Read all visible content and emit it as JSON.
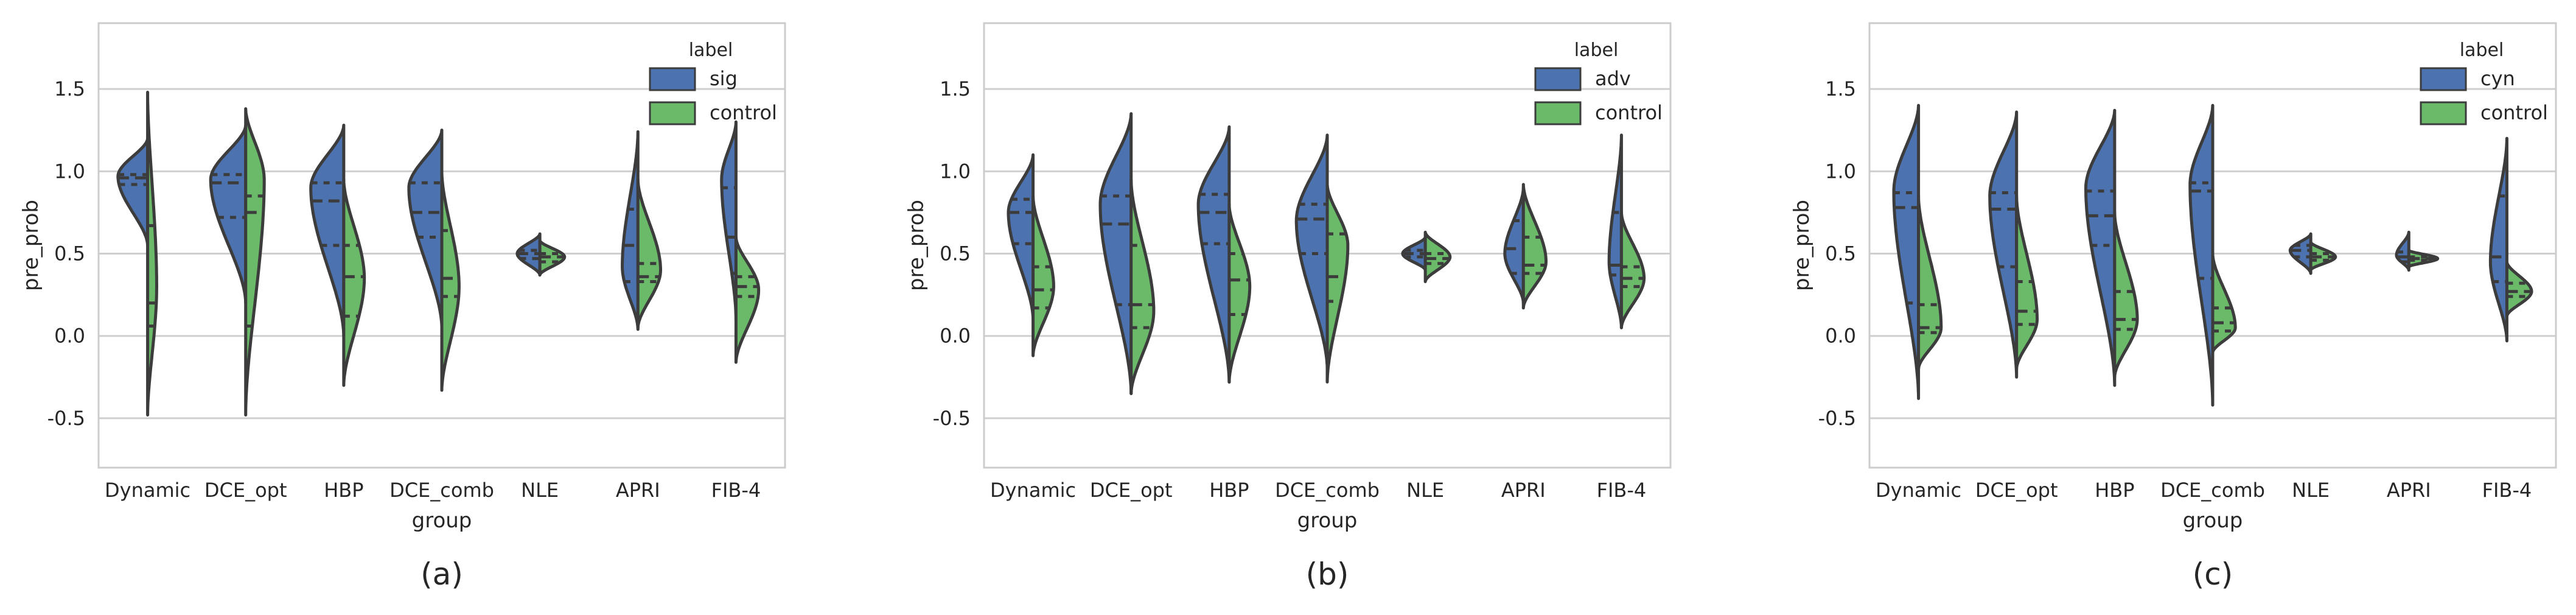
{
  "chart_data": [
    {
      "type": "violin",
      "panel_label": "(a)",
      "title": "",
      "xlabel": "group",
      "ylabel": "pre_prob",
      "ylim": [
        -0.8,
        1.9
      ],
      "yticks": [
        -0.5,
        0.0,
        0.5,
        1.0,
        1.5
      ],
      "ytick_labels": [
        "-0.5",
        "0.0",
        "0.5",
        "1.0",
        "1.5"
      ],
      "grid": "horizontal",
      "categories": [
        "Dynamic",
        "DCE_opt",
        "HBP",
        "DCE_comb",
        "NLE",
        "APRI",
        "FIB-4"
      ],
      "legend": {
        "title": "label",
        "position": "top-right",
        "entries": [
          "sig",
          "control"
        ]
      },
      "series": [
        {
          "name": "sig",
          "color": "#4c72b0",
          "side": "left",
          "violins": [
            {
              "min": 0.55,
              "max": 1.2,
              "mode": 0.97,
              "q1": 0.92,
              "median": 0.96,
              "q3": 0.98,
              "width": 0.72
            },
            {
              "min": 0.2,
              "max": 1.28,
              "mode": 0.95,
              "q1": 0.72,
              "median": 0.93,
              "q3": 0.98,
              "width": 0.85
            },
            {
              "min": 0.0,
              "max": 1.28,
              "mode": 0.9,
              "q1": 0.55,
              "median": 0.82,
              "q3": 0.93,
              "width": 0.8
            },
            {
              "min": 0.05,
              "max": 1.25,
              "mode": 0.9,
              "q1": 0.6,
              "median": 0.75,
              "q3": 0.93,
              "width": 0.8
            },
            {
              "min": 0.37,
              "max": 0.62,
              "mode": 0.5,
              "q1": 0.47,
              "median": 0.5,
              "q3": 0.52,
              "width": 0.55
            },
            {
              "min": 0.04,
              "max": 1.24,
              "mode": 0.42,
              "q1": 0.33,
              "median": 0.55,
              "q3": 0.77,
              "width": 0.38
            },
            {
              "min": 0.1,
              "max": 1.3,
              "mode": 0.95,
              "q1": 0.38,
              "median": 0.6,
              "q3": 0.9,
              "width": 0.35
            }
          ]
        },
        {
          "name": "control",
          "color": "#6aba6a",
          "side": "right",
          "violins": [
            {
              "min": -0.48,
              "max": 1.48,
              "mode": 0.3,
              "q1": 0.06,
              "median": 0.2,
              "q3": 0.67,
              "width": 0.22
            },
            {
              "min": -0.48,
              "max": 1.38,
              "mode": 0.95,
              "q1": 0.06,
              "median": 0.75,
              "q3": 0.85,
              "width": 0.45
            },
            {
              "min": -0.3,
              "max": 0.95,
              "mode": 0.35,
              "q1": 0.12,
              "median": 0.36,
              "q3": 0.55,
              "width": 0.5
            },
            {
              "min": -0.33,
              "max": 1.0,
              "mode": 0.3,
              "q1": 0.24,
              "median": 0.35,
              "q3": 0.64,
              "width": 0.42
            },
            {
              "min": 0.37,
              "max": 0.58,
              "mode": 0.48,
              "q1": 0.45,
              "median": 0.48,
              "q3": 0.5,
              "width": 0.6
            },
            {
              "min": 0.05,
              "max": 0.95,
              "mode": 0.4,
              "q1": 0.33,
              "median": 0.36,
              "q3": 0.44,
              "width": 0.55
            },
            {
              "min": -0.16,
              "max": 0.6,
              "mode": 0.28,
              "q1": 0.24,
              "median": 0.3,
              "q3": 0.36,
              "width": 0.55
            }
          ]
        }
      ]
    },
    {
      "type": "violin",
      "panel_label": "(b)",
      "title": "",
      "xlabel": "group",
      "ylabel": "pre_prob",
      "ylim": [
        -0.8,
        1.9
      ],
      "yticks": [
        -0.5,
        0.0,
        0.5,
        1.0,
        1.5
      ],
      "ytick_labels": [
        "-0.5",
        "0.0",
        "0.5",
        "1.0",
        "1.5"
      ],
      "grid": "horizontal",
      "categories": [
        "Dynamic",
        "DCE_opt",
        "HBP",
        "DCE_comb",
        "NLE",
        "APRI",
        "FIB-4"
      ],
      "legend": {
        "title": "label",
        "position": "top-right",
        "entries": [
          "adv",
          "control"
        ]
      },
      "series": [
        {
          "name": "adv",
          "color": "#4c72b0",
          "side": "left",
          "violins": [
            {
              "min": 0.1,
              "max": 1.1,
              "mode": 0.75,
              "q1": 0.56,
              "median": 0.75,
              "q3": 0.83,
              "width": 0.6
            },
            {
              "min": -0.35,
              "max": 1.35,
              "mode": 0.8,
              "q1": 0.19,
              "median": 0.68,
              "q3": 0.85,
              "width": 0.75
            },
            {
              "min": -0.28,
              "max": 1.27,
              "mode": 0.8,
              "q1": 0.56,
              "median": 0.75,
              "q3": 0.86,
              "width": 0.75
            },
            {
              "min": -0.2,
              "max": 1.22,
              "mode": 0.7,
              "q1": 0.5,
              "median": 0.71,
              "q3": 0.8,
              "width": 0.75
            },
            {
              "min": 0.4,
              "max": 0.6,
              "mode": 0.5,
              "q1": 0.48,
              "median": 0.5,
              "q3": 0.52,
              "width": 0.55
            },
            {
              "min": 0.2,
              "max": 0.9,
              "mode": 0.5,
              "q1": 0.38,
              "median": 0.53,
              "q3": 0.7,
              "width": 0.45
            },
            {
              "min": 0.05,
              "max": 1.22,
              "mode": 0.45,
              "q1": 0.37,
              "median": 0.43,
              "q3": 0.75,
              "width": 0.3
            }
          ]
        },
        {
          "name": "control",
          "color": "#6aba6a",
          "side": "right",
          "violins": [
            {
              "min": -0.12,
              "max": 0.85,
              "mode": 0.3,
              "q1": 0.17,
              "median": 0.28,
              "q3": 0.42,
              "width": 0.5
            },
            {
              "min": -0.35,
              "max": 0.95,
              "mode": 0.15,
              "q1": 0.05,
              "median": 0.19,
              "q3": 0.55,
              "width": 0.55
            },
            {
              "min": -0.28,
              "max": 0.8,
              "mode": 0.3,
              "q1": 0.13,
              "median": 0.34,
              "q3": 0.5,
              "width": 0.5
            },
            {
              "min": -0.28,
              "max": 0.92,
              "mode": 0.55,
              "q1": 0.21,
              "median": 0.36,
              "q3": 0.62,
              "width": 0.5
            },
            {
              "min": 0.33,
              "max": 0.63,
              "mode": 0.48,
              "q1": 0.44,
              "median": 0.47,
              "q3": 0.5,
              "width": 0.6
            },
            {
              "min": 0.17,
              "max": 0.92,
              "mode": 0.45,
              "q1": 0.38,
              "median": 0.43,
              "q3": 0.6,
              "width": 0.55
            },
            {
              "min": 0.05,
              "max": 0.75,
              "mode": 0.35,
              "q1": 0.3,
              "median": 0.35,
              "q3": 0.42,
              "width": 0.55
            }
          ]
        }
      ]
    },
    {
      "type": "violin",
      "panel_label": "(c)",
      "title": "",
      "xlabel": "group",
      "ylabel": "pre_prob",
      "ylim": [
        -0.8,
        1.9
      ],
      "yticks": [
        -0.5,
        0.0,
        0.5,
        1.0,
        1.5
      ],
      "ytick_labels": [
        "-0.5",
        "0.0",
        "0.5",
        "1.0",
        "1.5"
      ],
      "grid": "horizontal",
      "categories": [
        "Dynamic",
        "DCE_opt",
        "HBP",
        "DCE_comb",
        "NLE",
        "APRI",
        "FIB-4"
      ],
      "legend": {
        "title": "label",
        "position": "top-right",
        "entries": [
          "cyn",
          "control"
        ]
      },
      "series": [
        {
          "name": "cyn",
          "color": "#4c72b0",
          "side": "left",
          "violins": [
            {
              "min": -0.38,
              "max": 1.4,
              "mode": 0.88,
              "q1": 0.2,
              "median": 0.78,
              "q3": 0.87,
              "width": 0.6
            },
            {
              "min": -0.25,
              "max": 1.36,
              "mode": 0.85,
              "q1": 0.42,
              "median": 0.77,
              "q3": 0.87,
              "width": 0.65
            },
            {
              "min": -0.3,
              "max": 1.37,
              "mode": 0.9,
              "q1": 0.55,
              "median": 0.73,
              "q3": 0.88,
              "width": 0.7
            },
            {
              "min": -0.42,
              "max": 1.4,
              "mode": 0.92,
              "q1": 0.35,
              "median": 0.88,
              "q3": 0.93,
              "width": 0.55
            },
            {
              "min": 0.38,
              "max": 0.62,
              "mode": 0.52,
              "q1": 0.48,
              "median": 0.52,
              "q3": 0.55,
              "width": 0.5
            },
            {
              "min": 0.4,
              "max": 0.63,
              "mode": 0.49,
              "q1": 0.45,
              "median": 0.48,
              "q3": 0.51,
              "width": 0.3
            },
            {
              "min": -0.03,
              "max": 1.2,
              "mode": 0.45,
              "q1": 0.33,
              "median": 0.48,
              "q3": 0.85,
              "width": 0.4
            }
          ]
        },
        {
          "name": "control",
          "color": "#6aba6a",
          "side": "right",
          "violins": [
            {
              "min": -0.2,
              "max": 0.85,
              "mode": 0.05,
              "q1": 0.02,
              "median": 0.05,
              "q3": 0.19,
              "width": 0.55
            },
            {
              "min": -0.2,
              "max": 0.85,
              "mode": 0.1,
              "q1": 0.07,
              "median": 0.15,
              "q3": 0.33,
              "width": 0.5
            },
            {
              "min": -0.25,
              "max": 0.75,
              "mode": 0.1,
              "q1": 0.04,
              "median": 0.1,
              "q3": 0.27,
              "width": 0.55
            },
            {
              "min": -0.1,
              "max": 0.5,
              "mode": 0.05,
              "q1": 0.03,
              "median": 0.08,
              "q3": 0.17,
              "width": 0.55
            },
            {
              "min": 0.4,
              "max": 0.57,
              "mode": 0.48,
              "q1": 0.46,
              "median": 0.48,
              "q3": 0.5,
              "width": 0.6
            },
            {
              "min": 0.42,
              "max": 0.52,
              "mode": 0.47,
              "q1": 0.46,
              "median": 0.47,
              "q3": 0.48,
              "width": 0.7
            },
            {
              "min": 0.12,
              "max": 0.45,
              "mode": 0.27,
              "q1": 0.24,
              "median": 0.27,
              "q3": 0.32,
              "width": 0.6
            }
          ]
        }
      ]
    }
  ]
}
